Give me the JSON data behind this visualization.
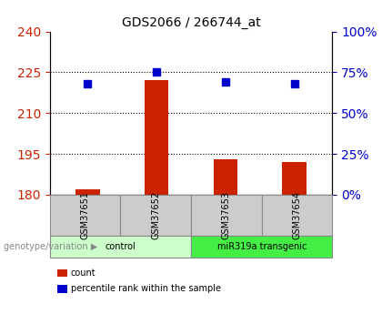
{
  "title": "GDS2066 / 266744_at",
  "samples": [
    "GSM37651",
    "GSM37652",
    "GSM37653",
    "GSM37654"
  ],
  "count_values": [
    182,
    222,
    193,
    192
  ],
  "percentile_values": [
    68,
    75,
    69,
    68
  ],
  "left_ylim": [
    180,
    240
  ],
  "left_yticks": [
    180,
    195,
    210,
    225,
    240
  ],
  "right_ylim": [
    0,
    100
  ],
  "right_yticks": [
    0,
    25,
    50,
    75,
    100
  ],
  "bar_color": "#cc2200",
  "square_color": "#0000cc",
  "groups": [
    {
      "label": "control",
      "samples": [
        0,
        1
      ],
      "color": "#ccffcc",
      "border": "#aaaaaa"
    },
    {
      "label": "miR319a transgenic",
      "samples": [
        2,
        3
      ],
      "color": "#44ee44",
      "border": "#aaaaaa"
    }
  ],
  "genotype_label": "genotype/variation",
  "legend_items": [
    {
      "label": "count",
      "color": "#cc2200",
      "marker": "s"
    },
    {
      "label": "percentile rank within the sample",
      "color": "#0000cc",
      "marker": "s"
    }
  ],
  "sample_box_color": "#cccccc",
  "dotted_line_color": "#000000",
  "title_color": "#000000",
  "left_tick_color": "#cc2200",
  "right_tick_color": "#0000cc",
  "figsize": [
    4.2,
    3.45
  ],
  "dpi": 100
}
